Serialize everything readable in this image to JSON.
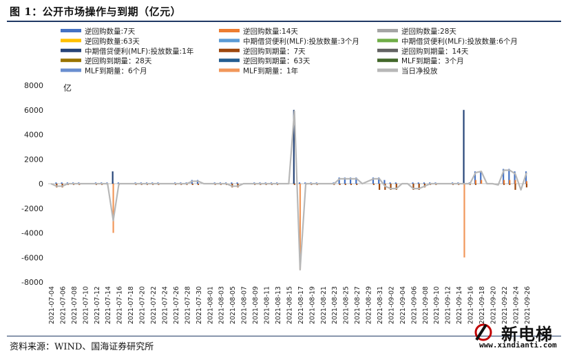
{
  "header": {
    "title": "图 1：公开市场操作与到期（亿元）"
  },
  "footer": {
    "source": "资料来源：WIND、国海证券研究所"
  },
  "watermark": {
    "brand": "新电梯",
    "url": "www.xindianti.com"
  },
  "chart_data": {
    "type": "bar",
    "title": "",
    "xlabel": "",
    "ylabel": "",
    "unit_label": "亿",
    "ylim": [
      -8000,
      8000
    ],
    "yticks": [
      -8000,
      -6000,
      -4000,
      -2000,
      0,
      2000,
      4000,
      6000,
      8000
    ],
    "grid": false,
    "legend_position": "top",
    "x": [
      "2021-07-04",
      "2021-07-05",
      "2021-07-06",
      "2021-07-07",
      "2021-07-08",
      "2021-07-09",
      "2021-07-10",
      "2021-07-11",
      "2021-07-12",
      "2021-07-13",
      "2021-07-14",
      "2021-07-15",
      "2021-07-16",
      "2021-07-17",
      "2021-07-18",
      "2021-07-19",
      "2021-07-20",
      "2021-07-21",
      "2021-07-22",
      "2021-07-23",
      "2021-07-24",
      "2021-07-25",
      "2021-07-26",
      "2021-07-27",
      "2021-07-28",
      "2021-07-29",
      "2021-07-30",
      "2021-07-31",
      "2021-08-01",
      "2021-08-02",
      "2021-08-03",
      "2021-08-04",
      "2021-08-05",
      "2021-08-06",
      "2021-08-07",
      "2021-08-08",
      "2021-08-09",
      "2021-08-10",
      "2021-08-11",
      "2021-08-12",
      "2021-08-13",
      "2021-08-14",
      "2021-08-15",
      "2021-08-16",
      "2021-08-17",
      "2021-08-18",
      "2021-08-19",
      "2021-08-20",
      "2021-08-21",
      "2021-08-22",
      "2021-08-23",
      "2021-08-24",
      "2021-08-25",
      "2021-08-26",
      "2021-08-27",
      "2021-08-28",
      "2021-08-29",
      "2021-08-30",
      "2021-08-31",
      "2021-09-01",
      "2021-09-02",
      "2021-09-03",
      "2021-09-04",
      "2021-09-05",
      "2021-09-06",
      "2021-09-07",
      "2021-09-08",
      "2021-09-09",
      "2021-09-10",
      "2021-09-11",
      "2021-09-12",
      "2021-09-13",
      "2021-09-14",
      "2021-09-15",
      "2021-09-16",
      "2021-09-17",
      "2021-09-18",
      "2021-09-19",
      "2021-09-20",
      "2021-09-21",
      "2021-09-22",
      "2021-09-23",
      "2021-09-24",
      "2021-09-25",
      "2021-09-26"
    ],
    "tick_labels": [
      "2021-07-04",
      "2021-07-06",
      "2021-07-08",
      "2021-07-10",
      "2021-07-12",
      "2021-07-14",
      "2021-07-16",
      "2021-07-18",
      "2021-07-20",
      "2021-07-22",
      "2021-07-24",
      "2021-07-26",
      "2021-07-28",
      "2021-07-30",
      "2021-08-01",
      "2021-08-03",
      "2021-08-05",
      "2021-08-07",
      "2021-08-09",
      "2021-08-11",
      "2021-08-13",
      "2021-08-15",
      "2021-08-17",
      "2021-08-19",
      "2021-08-21",
      "2021-08-23",
      "2021-08-25",
      "2021-08-27",
      "2021-08-29",
      "2021-08-31",
      "2021-09-02",
      "2021-09-04",
      "2021-09-06",
      "2021-09-08",
      "2021-09-10",
      "2021-09-12",
      "2021-09-14",
      "2021-09-16",
      "2021-09-18",
      "2021-09-20",
      "2021-09-22",
      "2021-09-24",
      "2021-09-26"
    ],
    "series": [
      {
        "name": "逆回购数量:7天",
        "color": "#4472c4",
        "kind": "bar",
        "points": [
          [
            "2021-07-05",
            100
          ],
          [
            "2021-07-06",
            100
          ],
          [
            "2021-07-07",
            100
          ],
          [
            "2021-07-08",
            100
          ],
          [
            "2021-07-09",
            100
          ],
          [
            "2021-07-12",
            100
          ],
          [
            "2021-07-13",
            100
          ],
          [
            "2021-07-14",
            100
          ],
          [
            "2021-07-15",
            100
          ],
          [
            "2021-07-16",
            100
          ],
          [
            "2021-07-19",
            100
          ],
          [
            "2021-07-20",
            100
          ],
          [
            "2021-07-21",
            100
          ],
          [
            "2021-07-22",
            100
          ],
          [
            "2021-07-23",
            100
          ],
          [
            "2021-07-26",
            100
          ],
          [
            "2021-07-27",
            100
          ],
          [
            "2021-07-28",
            100
          ],
          [
            "2021-07-29",
            300
          ],
          [
            "2021-07-30",
            300
          ],
          [
            "2021-08-02",
            100
          ],
          [
            "2021-08-03",
            100
          ],
          [
            "2021-08-04",
            100
          ],
          [
            "2021-08-05",
            100
          ],
          [
            "2021-08-06",
            100
          ],
          [
            "2021-08-09",
            100
          ],
          [
            "2021-08-10",
            100
          ],
          [
            "2021-08-11",
            100
          ],
          [
            "2021-08-12",
            100
          ],
          [
            "2021-08-13",
            100
          ],
          [
            "2021-08-16",
            100
          ],
          [
            "2021-08-17",
            100
          ],
          [
            "2021-08-18",
            100
          ],
          [
            "2021-08-19",
            100
          ],
          [
            "2021-08-20",
            100
          ],
          [
            "2021-08-23",
            100
          ],
          [
            "2021-08-24",
            500
          ],
          [
            "2021-08-25",
            500
          ],
          [
            "2021-08-26",
            500
          ],
          [
            "2021-08-27",
            500
          ],
          [
            "2021-08-30",
            500
          ],
          [
            "2021-08-31",
            500
          ],
          [
            "2021-09-01",
            300
          ],
          [
            "2021-09-02",
            100
          ],
          [
            "2021-09-03",
            100
          ],
          [
            "2021-09-06",
            100
          ],
          [
            "2021-09-07",
            100
          ],
          [
            "2021-09-08",
            100
          ],
          [
            "2021-09-09",
            100
          ],
          [
            "2021-09-10",
            100
          ],
          [
            "2021-09-13",
            100
          ],
          [
            "2021-09-14",
            100
          ],
          [
            "2021-09-15",
            100
          ],
          [
            "2021-09-16",
            100
          ],
          [
            "2021-09-17",
            1000
          ],
          [
            "2021-09-18",
            1000
          ],
          [
            "2021-09-22",
            1200
          ],
          [
            "2021-09-23",
            1200
          ],
          [
            "2021-09-24",
            1000
          ],
          [
            "2021-09-26",
            1000
          ]
        ]
      },
      {
        "name": "逆回购数量:14天",
        "color": "#ed7d31",
        "kind": "bar",
        "points": [
          [
            "2021-09-17",
            300
          ],
          [
            "2021-09-18",
            300
          ],
          [
            "2021-09-22",
            300
          ],
          [
            "2021-09-23",
            300
          ],
          [
            "2021-09-24",
            300
          ],
          [
            "2021-09-26",
            200
          ]
        ]
      },
      {
        "name": "逆回购数量:28天",
        "color": "#a5a5a5",
        "kind": "bar",
        "points": []
      },
      {
        "name": "逆回购数量:63天",
        "color": "#ffc000",
        "kind": "bar",
        "points": []
      },
      {
        "name": "中期借贷便利(MLF):投放数量:3个月",
        "color": "#5b9bd5",
        "kind": "bar",
        "points": []
      },
      {
        "name": "中期借贷便利(MLF):投放数量:6个月",
        "color": "#70ad47",
        "kind": "bar",
        "points": []
      },
      {
        "name": "中期借贷便利(MLF):投放数量:1年",
        "color": "#264478",
        "kind": "bar",
        "points": [
          [
            "2021-07-15",
            1000
          ],
          [
            "2021-08-16",
            6000
          ],
          [
            "2021-09-15",
            6000
          ]
        ]
      },
      {
        "name": "逆回购到期量：7天",
        "color": "#9e480e",
        "kind": "bar",
        "points": [
          [
            "2021-07-05",
            -300
          ],
          [
            "2021-07-06",
            -300
          ],
          [
            "2021-07-07",
            -100
          ],
          [
            "2021-07-08",
            -100
          ],
          [
            "2021-07-09",
            -100
          ],
          [
            "2021-07-12",
            -100
          ],
          [
            "2021-07-13",
            -100
          ],
          [
            "2021-07-14",
            -100
          ],
          [
            "2021-07-15",
            -100
          ],
          [
            "2021-07-16",
            -100
          ],
          [
            "2021-07-19",
            -100
          ],
          [
            "2021-07-20",
            -100
          ],
          [
            "2021-07-21",
            -100
          ],
          [
            "2021-07-22",
            -100
          ],
          [
            "2021-07-23",
            -100
          ],
          [
            "2021-07-26",
            -100
          ],
          [
            "2021-07-27",
            -100
          ],
          [
            "2021-07-28",
            -100
          ],
          [
            "2021-07-29",
            -100
          ],
          [
            "2021-07-30",
            -100
          ],
          [
            "2021-08-02",
            -100
          ],
          [
            "2021-08-03",
            -100
          ],
          [
            "2021-08-04",
            -100
          ],
          [
            "2021-08-05",
            -300
          ],
          [
            "2021-08-06",
            -300
          ],
          [
            "2021-08-09",
            -100
          ],
          [
            "2021-08-10",
            -100
          ],
          [
            "2021-08-11",
            -100
          ],
          [
            "2021-08-12",
            -100
          ],
          [
            "2021-08-13",
            -100
          ],
          [
            "2021-08-16",
            -100
          ],
          [
            "2021-08-17",
            -100
          ],
          [
            "2021-08-18",
            -100
          ],
          [
            "2021-08-19",
            -100
          ],
          [
            "2021-08-20",
            -100
          ],
          [
            "2021-08-23",
            -100
          ],
          [
            "2021-08-24",
            -100
          ],
          [
            "2021-08-25",
            -100
          ],
          [
            "2021-08-26",
            -100
          ],
          [
            "2021-08-27",
            -100
          ],
          [
            "2021-08-30",
            -100
          ],
          [
            "2021-08-31",
            -500
          ],
          [
            "2021-09-01",
            -500
          ],
          [
            "2021-09-02",
            -500
          ],
          [
            "2021-09-03",
            -500
          ],
          [
            "2021-09-06",
            -500
          ],
          [
            "2021-09-07",
            -500
          ],
          [
            "2021-09-08",
            -300
          ],
          [
            "2021-09-09",
            -100
          ],
          [
            "2021-09-10",
            -100
          ],
          [
            "2021-09-13",
            -100
          ],
          [
            "2021-09-14",
            -100
          ],
          [
            "2021-09-15",
            -100
          ],
          [
            "2021-09-16",
            -100
          ],
          [
            "2021-09-17",
            -100
          ],
          [
            "2021-09-22",
            -100
          ],
          [
            "2021-09-23",
            -100
          ],
          [
            "2021-09-24",
            -500
          ],
          [
            "2021-09-26",
            -300
          ]
        ]
      },
      {
        "name": "逆回购到期量：14天",
        "color": "#636363",
        "kind": "bar",
        "points": []
      },
      {
        "name": "逆回购到期量：28天",
        "color": "#997300",
        "kind": "bar",
        "points": []
      },
      {
        "name": "逆回购到期量：63天",
        "color": "#255e91",
        "kind": "bar",
        "points": []
      },
      {
        "name": "MLF到期量：3个月",
        "color": "#43682b",
        "kind": "bar",
        "points": []
      },
      {
        "name": "MLF到期量：6个月",
        "color": "#698ed0",
        "kind": "bar",
        "points": []
      },
      {
        "name": "MLF到期量：1年",
        "color": "#f1975a",
        "kind": "bar",
        "points": [
          [
            "2021-07-15",
            -4000
          ],
          [
            "2021-08-17",
            -7000
          ],
          [
            "2021-09-15",
            -6000
          ]
        ]
      },
      {
        "name": "当日净投放",
        "color": "#b7b7b7",
        "kind": "line",
        "points": [
          [
            "2021-07-04",
            0
          ],
          [
            "2021-07-05",
            -200
          ],
          [
            "2021-07-06",
            -200
          ],
          [
            "2021-07-07",
            0
          ],
          [
            "2021-07-08",
            0
          ],
          [
            "2021-07-09",
            0
          ],
          [
            "2021-07-12",
            0
          ],
          [
            "2021-07-13",
            0
          ],
          [
            "2021-07-14",
            0
          ],
          [
            "2021-07-15",
            -3000
          ],
          [
            "2021-07-16",
            0
          ],
          [
            "2021-07-19",
            0
          ],
          [
            "2021-07-20",
            0
          ],
          [
            "2021-07-21",
            0
          ],
          [
            "2021-07-22",
            0
          ],
          [
            "2021-07-23",
            0
          ],
          [
            "2021-07-26",
            0
          ],
          [
            "2021-07-27",
            0
          ],
          [
            "2021-07-28",
            0
          ],
          [
            "2021-07-29",
            200
          ],
          [
            "2021-07-30",
            200
          ],
          [
            "2021-07-31",
            0
          ],
          [
            "2021-08-02",
            0
          ],
          [
            "2021-08-03",
            0
          ],
          [
            "2021-08-04",
            0
          ],
          [
            "2021-08-05",
            -200
          ],
          [
            "2021-08-06",
            -200
          ],
          [
            "2021-08-07",
            0
          ],
          [
            "2021-08-09",
            0
          ],
          [
            "2021-08-10",
            0
          ],
          [
            "2021-08-11",
            0
          ],
          [
            "2021-08-12",
            0
          ],
          [
            "2021-08-13",
            0
          ],
          [
            "2021-08-14",
            0
          ],
          [
            "2021-08-15",
            0
          ],
          [
            "2021-08-16",
            5900
          ],
          [
            "2021-08-17",
            -7000
          ],
          [
            "2021-08-18",
            0
          ],
          [
            "2021-08-19",
            0
          ],
          [
            "2021-08-20",
            0
          ],
          [
            "2021-08-23",
            0
          ],
          [
            "2021-08-24",
            400
          ],
          [
            "2021-08-25",
            400
          ],
          [
            "2021-08-26",
            400
          ],
          [
            "2021-08-27",
            400
          ],
          [
            "2021-08-28",
            0
          ],
          [
            "2021-08-30",
            400
          ],
          [
            "2021-08-31",
            400
          ],
          [
            "2021-09-01",
            -200
          ],
          [
            "2021-09-02",
            -400
          ],
          [
            "2021-09-03",
            -400
          ],
          [
            "2021-09-04",
            0
          ],
          [
            "2021-09-05",
            0
          ],
          [
            "2021-09-06",
            -400
          ],
          [
            "2021-09-07",
            -400
          ],
          [
            "2021-09-08",
            -200
          ],
          [
            "2021-09-09",
            0
          ],
          [
            "2021-09-10",
            0
          ],
          [
            "2021-09-13",
            0
          ],
          [
            "2021-09-14",
            0
          ],
          [
            "2021-09-15",
            0
          ],
          [
            "2021-09-16",
            0
          ],
          [
            "2021-09-17",
            900
          ],
          [
            "2021-09-18",
            1000
          ],
          [
            "2021-09-19",
            0
          ],
          [
            "2021-09-20",
            0
          ],
          [
            "2021-09-21",
            -100
          ],
          [
            "2021-09-22",
            1100
          ],
          [
            "2021-09-23",
            1100
          ],
          [
            "2021-09-24",
            800
          ],
          [
            "2021-09-25",
            -500
          ],
          [
            "2021-09-26",
            900
          ]
        ]
      }
    ]
  }
}
